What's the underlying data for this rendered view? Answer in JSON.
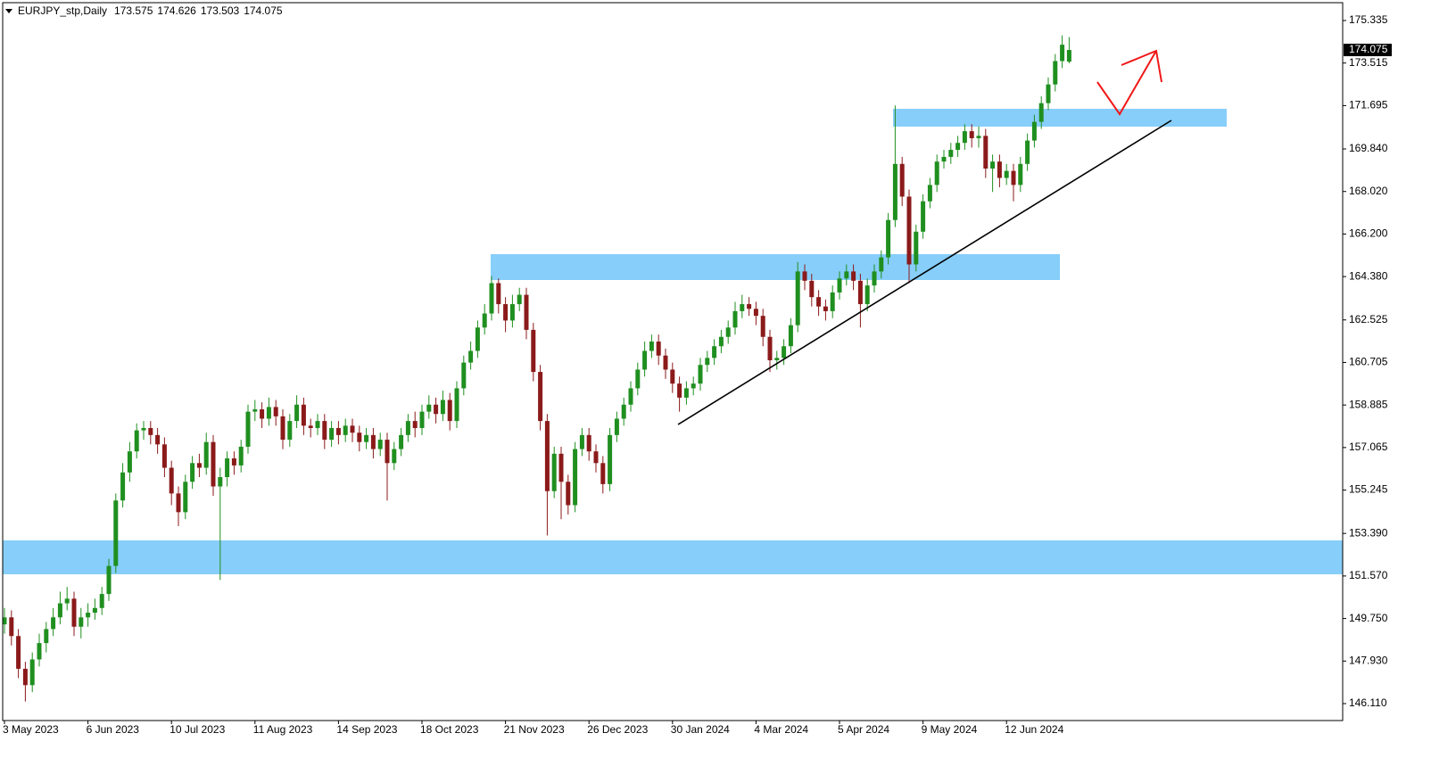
{
  "chart_data": {
    "type": "candlestick",
    "title": "EURJPY_stp,Daily",
    "up_color": "#1f8f1f",
    "down_color": "#8b1a1a",
    "ylim": [
      145.385,
      176.098
    ],
    "yticks": [
      175.335,
      173.515,
      171.695,
      {
        "value": 169.84,
        "label": "169.840"
      },
      {
        "value": 168.02,
        "label": "168.020"
      },
      {
        "value": 166.2,
        "label": "166.200"
      },
      {
        "value": 164.38,
        "label": "164.380"
      },
      162.525,
      160.705,
      158.885,
      157.065,
      155.245,
      {
        "value": 153.39,
        "label": "153.390"
      },
      {
        "value": 151.57,
        "label": "151.570"
      },
      {
        "value": 149.75,
        "label": "149.750"
      },
      {
        "value": 147.93,
        "label": "147.930"
      },
      {
        "value": 146.11,
        "label": "146.110"
      }
    ],
    "xticks": [
      {
        "value": 0,
        "label": "3 May 2023"
      },
      {
        "value": 12,
        "label": "6 Jun 2023"
      },
      {
        "value": 24,
        "label": "10 Jul 2023"
      },
      {
        "value": 36,
        "label": "11 Aug 2023"
      },
      {
        "value": 48,
        "label": "14 Sep 2023"
      },
      {
        "value": 60,
        "label": "18 Oct 2023"
      },
      {
        "value": 72,
        "label": "21 Nov 2023"
      },
      {
        "value": 84,
        "label": "26 Dec 2023"
      },
      {
        "value": 96,
        "label": "30 Jan 2024"
      },
      {
        "value": 108,
        "label": "4 Mar 2024"
      },
      {
        "value": 120,
        "label": "5 Apr 2024"
      },
      {
        "value": 132,
        "label": "9 May 2024"
      },
      {
        "value": 144,
        "label": "12 Jun 2024"
      }
    ],
    "open": [
      149.5,
      149.8,
      149.0,
      147.6,
      146.9,
      148.0,
      148.7,
      149.3,
      149.8,
      150.4,
      150.6,
      149.4,
      149.8,
      150.0,
      150.2,
      150.8,
      152.0,
      154.8,
      156.0,
      156.9,
      157.8,
      157.9,
      157.6,
      157.2,
      156.2,
      155.1,
      154.3,
      155.6,
      156.4,
      156.2,
      157.3,
      155.4,
      155.8,
      156.6,
      156.3,
      157.1,
      158.6,
      158.7,
      158.3,
      158.8,
      158.4,
      157.4,
      158.2,
      158.9,
      158.0,
      157.9,
      158.2,
      157.4,
      157.9,
      157.6,
      158.0,
      157.7,
      157.3,
      157.6,
      157.0,
      157.4,
      156.4,
      157.0,
      157.6,
      158.2,
      157.9,
      158.6,
      158.9,
      158.5,
      159.1,
      158.2,
      159.6,
      160.7,
      161.2,
      162.2,
      162.8,
      164.1,
      163.2,
      162.5,
      163.2,
      163.6,
      162.1,
      160.3,
      158.2,
      155.2,
      156.8,
      155.6,
      154.6,
      157.0,
      157.6,
      156.9,
      156.4,
      155.5,
      157.6,
      158.3,
      158.9,
      159.6,
      160.4,
      161.2,
      161.6,
      161.0,
      160.4,
      159.8,
      159.2,
      159.6,
      159.8,
      160.6,
      160.9,
      161.4,
      161.8,
      162.2,
      162.9,
      163.2,
      163.0,
      162.7,
      161.8,
      160.8,
      160.9,
      161.4,
      162.3,
      164.6,
      164.2,
      163.5,
      163.1,
      162.9,
      163.7,
      164.3,
      164.6,
      164.2,
      163.2,
      164.0,
      164.6,
      165.2,
      166.8,
      169.2,
      167.8,
      164.9,
      166.3,
      167.6,
      168.3,
      169.3,
      169.5,
      169.8,
      170.1,
      170.6,
      170.3,
      170.4,
      169.0,
      169.3,
      168.6,
      168.9,
      168.3,
      169.2,
      170.2,
      171.0,
      171.8,
      172.6,
      173.6,
      173.575
    ],
    "high": [
      150.2,
      150.1,
      149.3,
      147.9,
      148.3,
      149.1,
      149.6,
      150.2,
      150.9,
      151.1,
      150.9,
      150.2,
      150.4,
      150.6,
      151.1,
      152.3,
      155.1,
      156.4,
      157.3,
      158.1,
      158.2,
      158.2,
      157.9,
      157.5,
      156.5,
      155.4,
      155.9,
      156.7,
      156.8,
      157.7,
      157.6,
      156.2,
      156.9,
      156.9,
      157.4,
      158.9,
      159.1,
      159.0,
      159.2,
      159.1,
      158.7,
      158.5,
      159.3,
      159.2,
      158.3,
      158.5,
      158.5,
      158.2,
      158.2,
      158.3,
      158.3,
      158.0,
      157.9,
      157.9,
      157.7,
      157.7,
      157.3,
      157.9,
      158.5,
      158.6,
      158.9,
      159.3,
      159.2,
      159.5,
      159.4,
      159.9,
      161.0,
      161.6,
      162.5,
      163.2,
      164.4,
      164.3,
      163.5,
      163.6,
      163.9,
      163.9,
      162.4,
      160.6,
      158.5,
      157.1,
      157.1,
      155.9,
      157.3,
      157.9,
      157.9,
      157.2,
      156.7,
      157.9,
      158.6,
      159.2,
      159.9,
      160.7,
      161.6,
      161.9,
      161.9,
      161.3,
      160.7,
      160.1,
      159.9,
      160.1,
      160.9,
      161.2,
      161.7,
      162.1,
      162.5,
      163.3,
      163.6,
      163.5,
      163.3,
      163.0,
      162.1,
      161.2,
      161.7,
      162.6,
      165.0,
      164.9,
      164.5,
      163.8,
      163.4,
      164.0,
      164.6,
      164.9,
      164.9,
      164.5,
      164.3,
      164.9,
      165.5,
      167.1,
      171.7,
      169.5,
      168.1,
      166.6,
      167.9,
      168.6,
      169.6,
      169.8,
      170.1,
      170.4,
      170.9,
      170.9,
      170.8,
      170.7,
      169.6,
      169.6,
      169.2,
      169.2,
      169.5,
      170.5,
      171.3,
      172.1,
      172.9,
      173.9,
      174.7,
      174.626
    ],
    "low": [
      149.1,
      148.6,
      147.2,
      146.2,
      146.6,
      147.7,
      148.3,
      149.0,
      149.5,
      150.1,
      149.0,
      148.9,
      149.4,
      149.7,
      149.9,
      150.5,
      151.7,
      154.5,
      155.6,
      156.6,
      157.4,
      157.2,
      156.8,
      155.8,
      154.6,
      153.7,
      154.0,
      155.3,
      155.8,
      155.9,
      155.0,
      151.4,
      155.4,
      155.9,
      156.0,
      156.8,
      158.2,
      157.9,
      158.0,
      158.0,
      157.0,
      157.1,
      157.9,
      157.6,
      157.5,
      157.6,
      157.0,
      157.1,
      157.2,
      157.3,
      157.3,
      156.9,
      157.0,
      156.6,
      156.7,
      154.8,
      156.1,
      156.7,
      157.3,
      157.5,
      157.6,
      158.3,
      158.1,
      158.2,
      157.8,
      157.9,
      159.3,
      160.4,
      160.9,
      161.9,
      162.5,
      162.8,
      162.0,
      162.2,
      162.9,
      161.7,
      159.9,
      157.8,
      153.3,
      154.9,
      154.0,
      154.2,
      154.3,
      156.7,
      156.5,
      156.0,
      155.1,
      155.2,
      157.3,
      158.0,
      158.6,
      159.3,
      160.1,
      160.9,
      160.6,
      160.0,
      159.4,
      158.6,
      158.9,
      159.3,
      159.5,
      160.3,
      160.6,
      161.1,
      161.5,
      161.9,
      162.6,
      162.7,
      162.3,
      161.4,
      160.3,
      160.4,
      160.6,
      161.1,
      162.0,
      163.8,
      163.1,
      162.7,
      162.5,
      162.6,
      163.4,
      164.0,
      163.8,
      162.2,
      162.9,
      163.7,
      164.3,
      164.9,
      166.5,
      167.4,
      164.1,
      164.6,
      166.0,
      167.3,
      168.0,
      169.0,
      169.2,
      169.5,
      169.8,
      169.9,
      169.9,
      168.6,
      168.0,
      168.2,
      168.3,
      167.6,
      168.0,
      168.9,
      169.9,
      170.7,
      171.5,
      172.3,
      173.3,
      173.503
    ],
    "close": [
      149.8,
      149.0,
      147.6,
      146.9,
      148.0,
      148.7,
      149.3,
      149.8,
      150.4,
      150.6,
      149.4,
      149.8,
      150.0,
      150.2,
      150.8,
      152.0,
      154.8,
      156.0,
      156.9,
      157.8,
      157.9,
      157.6,
      157.2,
      156.2,
      155.1,
      154.3,
      155.6,
      156.4,
      156.2,
      157.3,
      155.4,
      155.8,
      156.6,
      156.3,
      157.1,
      158.6,
      158.7,
      158.3,
      158.8,
      158.4,
      157.4,
      158.2,
      158.9,
      158.0,
      157.9,
      158.2,
      157.4,
      157.9,
      157.6,
      158.0,
      157.7,
      157.3,
      157.6,
      157.0,
      157.4,
      156.4,
      157.0,
      157.6,
      158.2,
      157.9,
      158.6,
      158.9,
      158.5,
      159.1,
      158.2,
      159.6,
      160.7,
      161.2,
      162.2,
      162.8,
      164.1,
      163.2,
      162.5,
      163.2,
      163.6,
      162.1,
      160.3,
      158.2,
      155.2,
      156.8,
      155.6,
      154.6,
      157.0,
      157.6,
      156.9,
      156.4,
      155.5,
      157.6,
      158.3,
      158.9,
      159.6,
      160.4,
      161.2,
      161.6,
      161.0,
      160.4,
      159.8,
      159.2,
      159.6,
      159.8,
      160.6,
      160.9,
      161.4,
      161.8,
      162.2,
      162.9,
      163.2,
      163.0,
      162.7,
      161.8,
      160.8,
      160.9,
      161.4,
      162.3,
      164.6,
      164.2,
      163.5,
      163.1,
      162.9,
      163.7,
      164.3,
      164.6,
      164.2,
      163.2,
      164.0,
      164.6,
      165.2,
      166.8,
      169.2,
      167.8,
      164.9,
      166.3,
      167.6,
      168.3,
      169.3,
      169.5,
      169.8,
      170.1,
      170.6,
      170.3,
      170.4,
      169.0,
      169.3,
      168.6,
      168.9,
      168.3,
      169.2,
      170.2,
      171.0,
      171.8,
      172.6,
      173.6,
      174.3,
      174.075
    ]
  }
}
